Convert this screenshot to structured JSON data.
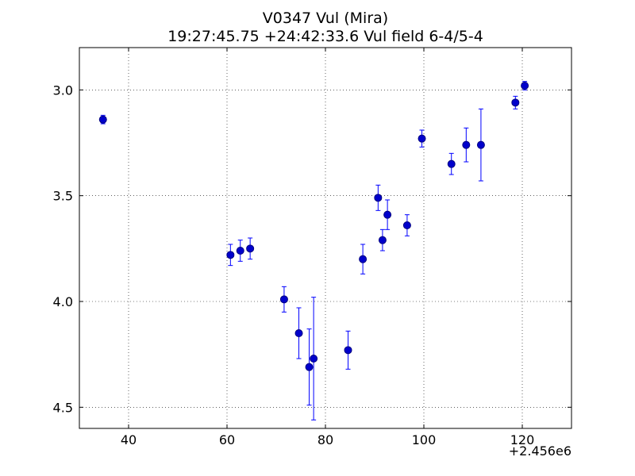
{
  "chart_data": {
    "type": "scatter",
    "title": "V0347 Vul (Mira)",
    "subtitle": "19:27:45.75 +24:42:33.6 Vul field 6-4/5-4",
    "xlabel": "",
    "ylabel": "",
    "x_offset_label": "+2.456e6",
    "xlim": [
      30,
      130
    ],
    "ylim": [
      2.8,
      4.6
    ],
    "y_inverted": true,
    "x_ticks": [
      40,
      60,
      80,
      100,
      120
    ],
    "y_ticks": [
      3.0,
      3.5,
      4.0,
      4.5
    ],
    "x_tick_labels": [
      "40",
      "60",
      "80",
      "100",
      "120"
    ],
    "y_tick_labels": [
      "3.0",
      "3.5",
      "4.0",
      "4.5"
    ],
    "grid": true,
    "marker_color": "#0000cc",
    "errorbar_color": "#0000ff",
    "points": [
      {
        "x": 34.8,
        "y": 3.14,
        "err": 0.02
      },
      {
        "x": 60.7,
        "y": 3.78,
        "err": 0.05
      },
      {
        "x": 62.7,
        "y": 3.76,
        "err": 0.05
      },
      {
        "x": 64.7,
        "y": 3.75,
        "err": 0.05
      },
      {
        "x": 71.6,
        "y": 3.99,
        "err": 0.06
      },
      {
        "x": 74.6,
        "y": 4.15,
        "err": 0.12
      },
      {
        "x": 76.7,
        "y": 4.31,
        "err": 0.18
      },
      {
        "x": 77.6,
        "y": 4.27,
        "err": 0.29
      },
      {
        "x": 84.6,
        "y": 4.23,
        "err": 0.09
      },
      {
        "x": 87.6,
        "y": 3.8,
        "err": 0.07
      },
      {
        "x": 90.7,
        "y": 3.51,
        "err": 0.06
      },
      {
        "x": 91.6,
        "y": 3.71,
        "err": 0.05
      },
      {
        "x": 92.6,
        "y": 3.59,
        "err": 0.07
      },
      {
        "x": 96.6,
        "y": 3.64,
        "err": 0.05
      },
      {
        "x": 99.6,
        "y": 3.23,
        "err": 0.04
      },
      {
        "x": 105.6,
        "y": 3.35,
        "err": 0.05
      },
      {
        "x": 108.6,
        "y": 3.26,
        "err": 0.08
      },
      {
        "x": 111.6,
        "y": 3.26,
        "err": 0.17
      },
      {
        "x": 118.6,
        "y": 3.06,
        "err": 0.03
      },
      {
        "x": 120.5,
        "y": 2.98,
        "err": 0.02
      }
    ]
  }
}
